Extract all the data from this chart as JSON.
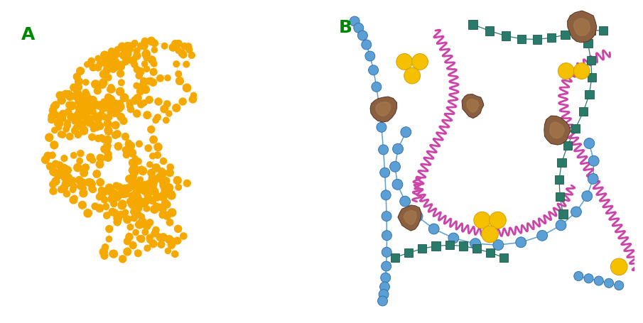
{
  "background_color": "#ffffff",
  "label_A": "A",
  "label_B": "B",
  "label_color": "#008800",
  "label_fontsize": 18,
  "orange_bead_color": "#f5a800",
  "orange_bead_edge_color": "#cc8000",
  "blue_bead_color": "#5b9fd4",
  "blue_bead_edge_color": "#2a6aaa",
  "teal_square_color": "#2a7a6a",
  "teal_square_edge_color": "#1a5a4a",
  "purple_coil_color": "#cc44aa",
  "brown_blob_fill": "#8B6040",
  "brown_blob_edge": "#5a3020",
  "gold_color": "#f5c000",
  "gold_edge": "#d4a000"
}
